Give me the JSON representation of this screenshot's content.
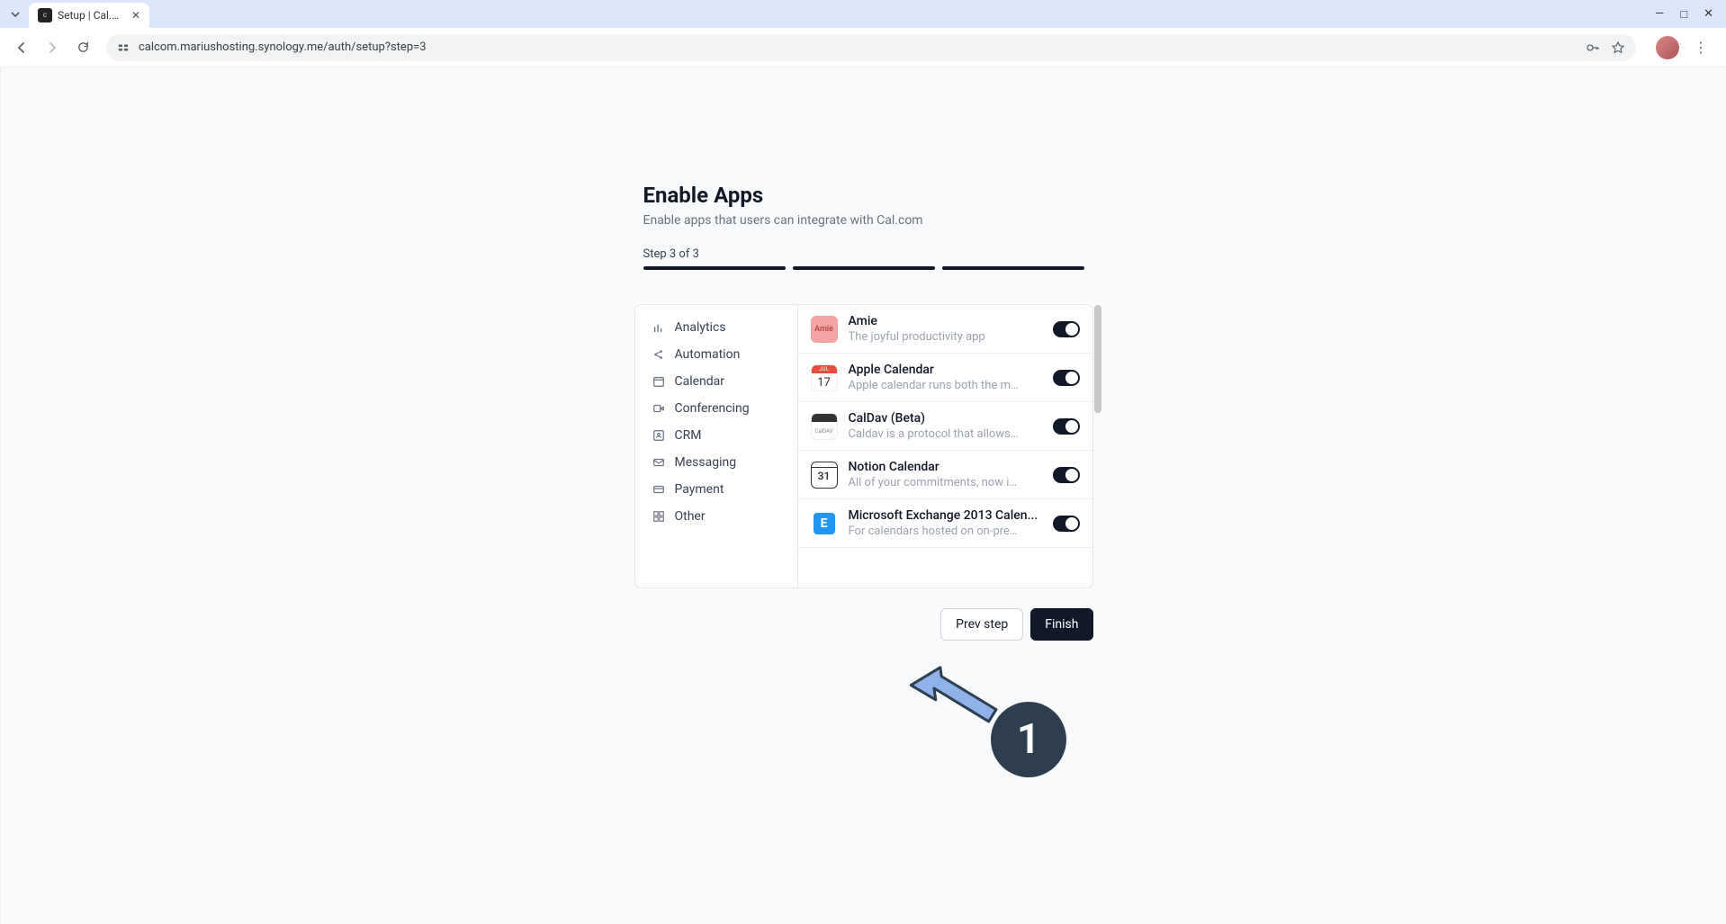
{
  "browser": {
    "tab_title": "Setup | Cal.com",
    "url": "calcom.mariushosting.synology.me/auth/setup?step=3"
  },
  "page": {
    "title": "Enable Apps",
    "subtitle": "Enable apps that users can integrate with Cal.com",
    "step_label": "Step 3 of 3"
  },
  "categories": [
    {
      "icon": "bar-chart",
      "label": "Analytics"
    },
    {
      "icon": "share",
      "label": "Automation"
    },
    {
      "icon": "calendar",
      "label": "Calendar"
    },
    {
      "icon": "video",
      "label": "Conferencing"
    },
    {
      "icon": "contact",
      "label": "CRM"
    },
    {
      "icon": "mail",
      "label": "Messaging"
    },
    {
      "icon": "credit-card",
      "label": "Payment"
    },
    {
      "icon": "grid",
      "label": "Other"
    }
  ],
  "apps": [
    {
      "icon_bg": "#f5a3a3",
      "icon_text": "Amie",
      "icon_text_color": "#b04040",
      "name": "Amie",
      "desc": "The joyful productivity app",
      "enabled": true
    },
    {
      "icon_bg": "#ffffff",
      "icon_text": "17",
      "icon_header": "JUL",
      "name": "Apple Calendar",
      "desc": "Apple calendar runs both the mac...",
      "enabled": true
    },
    {
      "icon_bg": "#ffffff",
      "icon_text": "CalDAV",
      "name": "CalDav (Beta)",
      "desc": "Caldav is a protocol that allows dif...",
      "enabled": true
    },
    {
      "icon_bg": "#ffffff",
      "icon_text": "31",
      "name": "Notion Calendar",
      "desc": "All of your commitments, now in o...",
      "enabled": true
    },
    {
      "icon_bg": "#ffffff",
      "icon_text": "E",
      "icon_text_color": "#2196f3",
      "name": "Microsoft Exchange 2013 Calen...",
      "desc": "For calendars hosted on on-premi...",
      "enabled": true
    }
  ],
  "buttons": {
    "prev": "Prev step",
    "finish": "Finish"
  },
  "annotation": {
    "number": "1",
    "arrow_color": "#8fb3e8",
    "arrow_stroke": "#2c3e50",
    "badge_bg": "#2c3e50"
  }
}
